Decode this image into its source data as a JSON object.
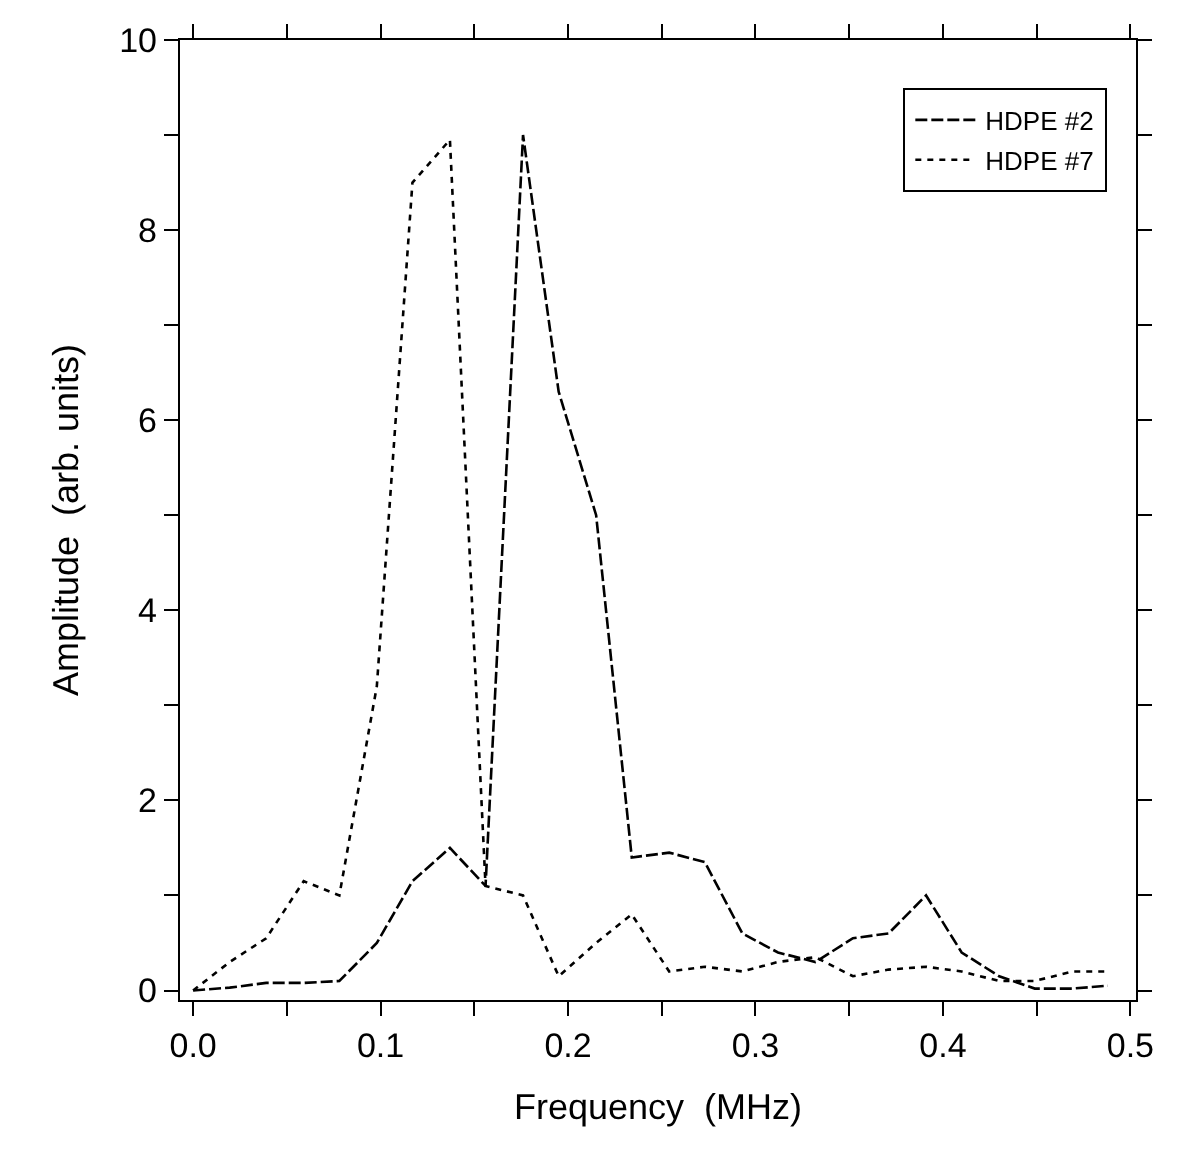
{
  "chart_data": {
    "type": "line",
    "xlabel": "Frequency  (MHz)",
    "ylabel": "Amplitude  (arb. units)",
    "xlim": [
      -0.007,
      0.503
    ],
    "ylim": [
      -0.1,
      10
    ],
    "xticks": [
      {
        "value": 0,
        "label": "0.0"
      },
      {
        "value": 0.05,
        "label": null
      },
      0.1,
      {
        "value": 0.15,
        "label": null
      },
      0.2,
      {
        "value": 0.25,
        "label": null
      },
      0.3,
      {
        "value": 0.35,
        "label": null
      },
      0.4,
      {
        "value": 0.45,
        "label": null
      },
      0.5
    ],
    "yticks": [
      0,
      {
        "value": 1,
        "label": null
      },
      2,
      {
        "value": 3,
        "label": null
      },
      4,
      {
        "value": 5,
        "label": null
      },
      6,
      {
        "value": 7,
        "label": null
      },
      8,
      {
        "value": 9,
        "label": null
      },
      10
    ],
    "x": [
      0,
      0.0195,
      0.039,
      0.059,
      0.078,
      0.098,
      0.117,
      0.137,
      0.156,
      0.176,
      0.195,
      0.215,
      0.234,
      0.254,
      0.273,
      0.293,
      0.312,
      0.332,
      0.352,
      0.371,
      0.391,
      0.41,
      0.43,
      0.449,
      0.469,
      0.488
    ],
    "series": [
      {
        "name": "HDPE #2",
        "color": "#000000",
        "line_style": "dashed",
        "values": [
          0,
          0.03,
          0.08,
          0.08,
          0.1,
          0.5,
          1.15,
          1.5,
          1.1,
          9.0,
          6.3,
          5.0,
          1.4,
          1.45,
          1.35,
          0.6,
          0.4,
          0.3,
          0.55,
          0.6,
          1.0,
          0.4,
          0.15,
          0.02,
          0.02,
          0.05
        ]
      },
      {
        "name": "HDPE #7",
        "color": "#000000",
        "line_style": "dotted",
        "values": [
          0,
          0.3,
          0.55,
          1.15,
          1.0,
          3.2,
          8.5,
          8.95,
          1.1,
          1.0,
          0.15,
          0.5,
          0.8,
          0.2,
          0.25,
          0.2,
          0.3,
          0.35,
          0.15,
          0.22,
          0.25,
          0.2,
          0.1,
          0.1,
          0.2,
          0.2
        ]
      }
    ],
    "legend": "top right",
    "grid": false,
    "marker": "none"
  }
}
